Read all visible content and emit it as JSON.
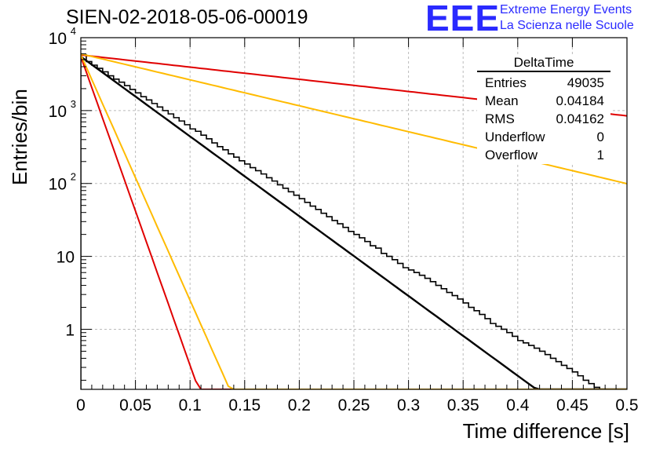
{
  "header": {
    "run_title": "SIEN-02-2018-05-06-00019",
    "logo": "EEE",
    "brand_line1": "Extreme Energy Events",
    "brand_line2": "La Scienza nelle Scuole"
  },
  "stats": {
    "title": "DeltaTime",
    "rows": [
      {
        "label": "Entries",
        "value": "49035"
      },
      {
        "label": "Mean",
        "value": "0.04184"
      },
      {
        "label": "RMS",
        "value": "0.04162"
      },
      {
        "label": "Underflow",
        "value": "0"
      },
      {
        "label": "Overflow",
        "value": "1"
      }
    ]
  },
  "chart_data": {
    "type": "line",
    "xlabel": "Time difference [s]",
    "ylabel": "Entries/bin",
    "xlim": [
      0,
      0.5
    ],
    "ylim": [
      0.15,
      10000
    ],
    "y_scale": "log",
    "grid": true,
    "x_ticks": [
      "0",
      "0.05",
      "0.1",
      "0.15",
      "0.2",
      "0.25",
      "0.3",
      "0.35",
      "0.4",
      "0.45",
      "0.5"
    ],
    "y_ticks": [
      {
        "value": 1,
        "label": "1"
      },
      {
        "value": 10,
        "label": "10"
      },
      {
        "value": 100,
        "label": "10",
        "exp": "2"
      },
      {
        "value": 1000,
        "label": "10",
        "exp": "3"
      },
      {
        "value": 10000,
        "label": "10",
        "exp": "4"
      }
    ],
    "histogram": {
      "bin_width": 0.005,
      "values": [
        5800,
        4700,
        4200,
        3800,
        3400,
        3000,
        2700,
        2450,
        2200,
        1950,
        1750,
        1550,
        1400,
        1250,
        1120,
        1000,
        900,
        800,
        720,
        640,
        560,
        520,
        460,
        410,
        360,
        320,
        290,
        255,
        230,
        205,
        185,
        165,
        150,
        135,
        120,
        108,
        96,
        86,
        77,
        69,
        62,
        55,
        49,
        44,
        39,
        35,
        31,
        28,
        25,
        22,
        20,
        18,
        16,
        14,
        13,
        11,
        10,
        9,
        8,
        7,
        6.5,
        6,
        5.5,
        5,
        4.5,
        4,
        3.6,
        3.2,
        2.9,
        2.6,
        2.3,
        2,
        1.8,
        1.6,
        1.4,
        1.2,
        1.1,
        1,
        0.9,
        0.8,
        0.7,
        0.65,
        0.6,
        0.55,
        0.5,
        0.45,
        0.4,
        0.36,
        0.32,
        0.29,
        0.26,
        0.23,
        0.2,
        0.18,
        0.16,
        0.15,
        0.14,
        0.13,
        0.12,
        0.11
      ]
    },
    "series": [
      {
        "color": "#000000",
        "y0": 5500,
        "slope_per_s": -25.2
      },
      {
        "color": "#e00000",
        "y0": 5800,
        "slope_per_s": -3.85
      },
      {
        "color": "#ffbb00",
        "y0": 6000,
        "slope_per_s": -8.2
      },
      {
        "color": "#e00000",
        "y0": 5500,
        "slope_per_s": -97.5
      },
      {
        "color": "#ffbb00",
        "y0": 5800,
        "slope_per_s": -77.5
      }
    ]
  }
}
